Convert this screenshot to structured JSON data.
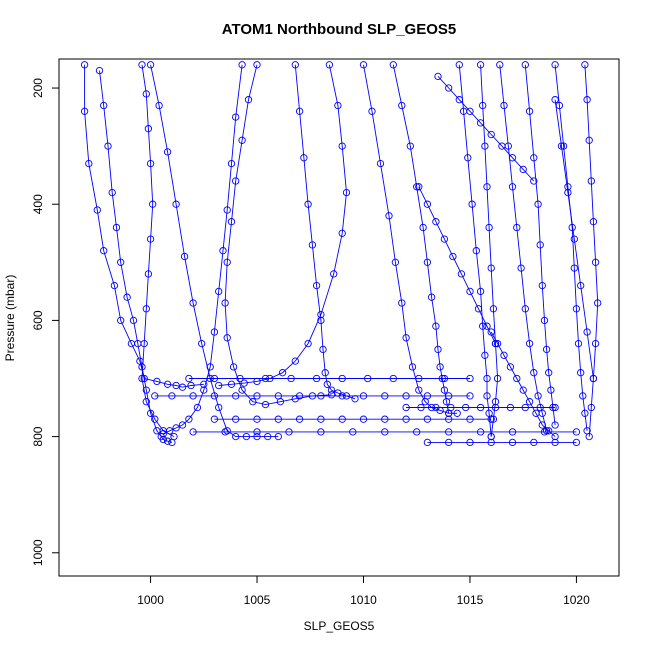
{
  "chart_data": {
    "type": "line",
    "title": "ATOM1 Northbound SLP_GEOS5",
    "xlabel": "SLP_GEOS5",
    "ylabel": "Pressure (mbar)",
    "xlim": [
      995.7,
      1022
    ],
    "ylim": [
      1040,
      150
    ],
    "y_reversed": true,
    "x_ticks": [
      1000,
      1005,
      1010,
      1015,
      1020
    ],
    "y_ticks": [
      200,
      400,
      600,
      800,
      1000
    ],
    "grid": false,
    "legend": "none",
    "marker": "open-circle",
    "color": "#0000ff",
    "series": [
      {
        "x": [
          996.9,
          996.9,
          997.1,
          997.5,
          997.8,
          998.3,
          998.6,
          999.1,
          999.5,
          999.7,
          1000.3,
          1000.8,
          1001.2,
          1001.5,
          1001.9,
          1002.5
        ],
        "y": [
          160,
          240,
          330,
          410,
          480,
          540,
          600,
          640,
          670,
          700,
          705,
          710,
          712,
          715,
          712,
          710
        ]
      },
      {
        "x": [
          997.6,
          997.8,
          998.0,
          998.2,
          998.4,
          998.6,
          998.9,
          999.2,
          999.4,
          999.6,
          999.8,
          1000.0,
          1000.3,
          1000.5,
          1000.6,
          1000.8,
          1001.0
        ],
        "y": [
          170,
          230,
          300,
          380,
          440,
          500,
          560,
          600,
          640,
          680,
          720,
          760,
          790,
          800,
          805,
          808,
          810
        ]
      },
      {
        "x": [
          999.6,
          999.8,
          999.9,
          1000.0,
          1000.1,
          1000.0,
          999.9,
          999.8,
          999.7,
          999.6,
          999.8,
          1000.2,
          1000.6,
          1001.1
        ],
        "y": [
          160,
          210,
          270,
          330,
          400,
          460,
          520,
          580,
          640,
          700,
          740,
          770,
          790,
          800
        ]
      },
      {
        "x": [
          1000.0,
          1000.4,
          1000.8,
          1001.2,
          1001.6,
          1002.0,
          1002.4,
          1002.8,
          1003.2,
          1003.6,
          1004.0,
          1004.5,
          1005.0,
          1005.5,
          1006.0
        ],
        "y": [
          160,
          230,
          310,
          400,
          490,
          570,
          640,
          700,
          750,
          790,
          800,
          800,
          800,
          800,
          800
        ]
      },
      {
        "x": [
          1004.3,
          1004.0,
          1003.8,
          1003.6,
          1003.4,
          1003.2,
          1003.0,
          1002.8,
          1002.5,
          1002.2,
          1001.8,
          1001.5,
          1001.2,
          1000.9,
          1000.6
        ],
        "y": [
          160,
          250,
          330,
          410,
          480,
          550,
          620,
          680,
          720,
          750,
          770,
          780,
          785,
          790,
          795
        ]
      },
      {
        "x": [
          1005.0,
          1004.6,
          1004.3,
          1004.0,
          1003.8,
          1003.6,
          1003.5,
          1003.6,
          1003.9,
          1004.3,
          1004.8,
          1005.4,
          1006.1,
          1006.8,
          1007.6,
          1008.5
        ],
        "y": [
          160,
          220,
          290,
          360,
          430,
          500,
          570,
          630,
          680,
          720,
          740,
          745,
          740,
          735,
          730,
          728
        ]
      },
      {
        "x": [
          1006.8,
          1007.0,
          1007.2,
          1007.4,
          1007.6,
          1007.8,
          1008.0,
          1008.1,
          1008.2,
          1008.3,
          1008.5,
          1008.8,
          1009.2,
          1009.6
        ],
        "y": [
          160,
          240,
          320,
          400,
          470,
          540,
          600,
          650,
          690,
          710,
          720,
          725,
          730,
          735
        ]
      },
      {
        "x": [
          1008.4,
          1008.8,
          1009.0,
          1009.2,
          1009.0,
          1008.6,
          1008.0,
          1007.4,
          1006.8,
          1006.2,
          1005.6,
          1005.0,
          1004.4,
          1003.8,
          1003.2
        ],
        "y": [
          160,
          230,
          300,
          380,
          450,
          520,
          590,
          640,
          670,
          690,
          700,
          705,
          708,
          710,
          712
        ]
      },
      {
        "x": [
          1010.0,
          1010.4,
          1010.8,
          1011.2,
          1011.5,
          1011.8,
          1012.0,
          1012.3,
          1012.6,
          1012.9,
          1013.2,
          1013.6,
          1014.0,
          1014.4
        ],
        "y": [
          160,
          240,
          330,
          420,
          500,
          570,
          630,
          680,
          720,
          740,
          750,
          755,
          760,
          760
        ]
      },
      {
        "x": [
          1011.4,
          1011.8,
          1012.2,
          1012.5,
          1012.8,
          1013.0,
          1013.2,
          1013.4,
          1013.5,
          1013.6,
          1013.7,
          1013.8,
          1013.9,
          1014.0
        ],
        "y": [
          160,
          230,
          300,
          370,
          440,
          500,
          560,
          610,
          650,
          680,
          700,
          720,
          740,
          760
        ]
      },
      {
        "x": [
          1000.2,
          1001.0,
          1002.0,
          1003.0,
          1004.0,
          1005.0,
          1006.0,
          1007.0,
          1008.0,
          1009.0,
          1010.0,
          1011.0,
          1012.0,
          1013.0,
          1014.0,
          1015.0
        ],
        "y": [
          730,
          730,
          730,
          730,
          730,
          730,
          730,
          730,
          730,
          730,
          730,
          730,
          730,
          730,
          730,
          730
        ]
      },
      {
        "x": [
          1001.8,
          1003.0,
          1004.2,
          1005.4,
          1006.6,
          1007.8,
          1009.0,
          1010.2,
          1011.4,
          1012.6,
          1013.8,
          1015.0
        ],
        "y": [
          700,
          700,
          700,
          700,
          700,
          700,
          700,
          700,
          700,
          700,
          700,
          700
        ]
      },
      {
        "x": [
          1002.0,
          1003.5,
          1005.0,
          1006.5,
          1008.0,
          1009.5,
          1011.0,
          1012.5,
          1014.0,
          1015.5,
          1017.0,
          1018.5,
          1020.0
        ],
        "y": [
          792,
          792,
          792,
          792,
          792,
          792,
          792,
          792,
          792,
          792,
          792,
          792,
          792
        ]
      },
      {
        "x": [
          1003.0,
          1004.0,
          1005.0,
          1006.0,
          1007.0,
          1008.0,
          1009.0,
          1010.0,
          1011.0,
          1012.0,
          1013.0,
          1014.0,
          1015.0,
          1016.0
        ],
        "y": [
          770,
          770,
          770,
          770,
          770,
          770,
          770,
          770,
          770,
          770,
          770,
          770,
          770,
          770
        ]
      },
      {
        "x": [
          1012.0,
          1012.7,
          1013.4,
          1014.1,
          1014.8,
          1015.5,
          1016.2,
          1016.9,
          1017.6,
          1018.3,
          1019.0
        ],
        "y": [
          750,
          750,
          750,
          750,
          750,
          750,
          750,
          750,
          750,
          750,
          750
        ]
      },
      {
        "x": [
          1013.0,
          1014.0,
          1015.0,
          1016.0,
          1017.0,
          1018.0,
          1019.0,
          1020.0
        ],
        "y": [
          810,
          810,
          810,
          810,
          810,
          810,
          810,
          810
        ]
      },
      {
        "x": [
          1014.5,
          1014.7,
          1014.9,
          1015.1,
          1015.3,
          1015.5,
          1015.6,
          1015.7,
          1015.8,
          1015.8,
          1015.9,
          1016.0
        ],
        "y": [
          160,
          240,
          320,
          400,
          480,
          550,
          610,
          660,
          700,
          730,
          760,
          800
        ]
      },
      {
        "x": [
          1015.5,
          1015.6,
          1015.7,
          1015.8,
          1015.9,
          1016.0,
          1016.1,
          1016.2,
          1016.3,
          1016.2,
          1016.1,
          1016.0
        ],
        "y": [
          160,
          230,
          300,
          370,
          440,
          510,
          580,
          640,
          700,
          740,
          770,
          800
        ]
      },
      {
        "x": [
          1016.4,
          1016.6,
          1016.8,
          1017.0,
          1017.2,
          1017.4,
          1017.6,
          1017.8,
          1018.0,
          1018.2,
          1018.4,
          1018.6
        ],
        "y": [
          160,
          230,
          300,
          370,
          440,
          510,
          580,
          640,
          690,
          730,
          760,
          790
        ]
      },
      {
        "x": [
          1017.6,
          1017.8,
          1018.0,
          1018.2,
          1018.3,
          1018.4,
          1018.5,
          1018.6,
          1018.7,
          1018.8,
          1018.9,
          1019.0
        ],
        "y": [
          160,
          240,
          320,
          400,
          470,
          540,
          600,
          650,
          690,
          720,
          750,
          780
        ]
      },
      {
        "x": [
          1019.0,
          1019.2,
          1019.4,
          1019.6,
          1019.8,
          1019.9,
          1020.0,
          1020.1,
          1020.2,
          1020.3,
          1020.4,
          1020.5
        ],
        "y": [
          160,
          230,
          300,
          370,
          440,
          510,
          580,
          640,
          690,
          730,
          760,
          790
        ]
      },
      {
        "x": [
          1020.4,
          1020.5,
          1020.6,
          1020.7,
          1020.8,
          1020.9,
          1021.0,
          1020.9,
          1020.8,
          1020.7,
          1020.6
        ],
        "y": [
          160,
          220,
          290,
          360,
          430,
          500,
          570,
          640,
          700,
          750,
          800
        ]
      },
      {
        "x": [
          1013.5,
          1014.0,
          1014.5,
          1015.0,
          1015.5,
          1016.0,
          1016.5,
          1017.0,
          1017.5,
          1018.0
        ],
        "y": [
          180,
          200,
          220,
          240,
          260,
          280,
          300,
          320,
          340,
          360
        ]
      },
      {
        "x": [
          1012.6,
          1013.0,
          1013.4,
          1013.8,
          1014.2,
          1014.6,
          1015.0,
          1015.4,
          1015.8,
          1016.2
        ],
        "y": [
          370,
          400,
          430,
          460,
          490,
          520,
          550,
          580,
          610,
          640
        ]
      },
      {
        "x": [
          1016.0,
          1016.3,
          1016.6,
          1016.9,
          1017.2,
          1017.5,
          1017.8,
          1018.1,
          1018.4,
          1018.7,
          1019.0
        ],
        "y": [
          620,
          640,
          660,
          680,
          700,
          720,
          740,
          760,
          780,
          790,
          800
        ]
      },
      {
        "x": [
          1019.0,
          1019.3,
          1019.6,
          1019.9,
          1020.2,
          1020.5,
          1020.8
        ],
        "y": [
          220,
          300,
          380,
          460,
          540,
          620,
          700
        ]
      }
    ]
  }
}
